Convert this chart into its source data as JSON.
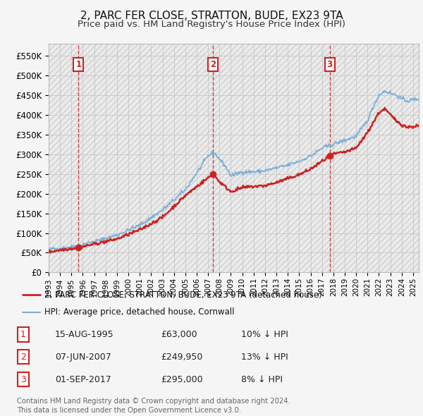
{
  "title": "2, PARC FER CLOSE, STRATTON, BUDE, EX23 9TA",
  "subtitle": "Price paid vs. HM Land Registry's House Price Index (HPI)",
  "ylim": [
    0,
    580000
  ],
  "yticks": [
    0,
    50000,
    100000,
    150000,
    200000,
    250000,
    300000,
    350000,
    400000,
    450000,
    500000,
    550000
  ],
  "ytick_labels": [
    "£0",
    "£50K",
    "£100K",
    "£150K",
    "£200K",
    "£250K",
    "£300K",
    "£350K",
    "£400K",
    "£450K",
    "£500K",
    "£550K"
  ],
  "xlim_start": 1993.0,
  "xlim_end": 2025.5,
  "hpi_color": "#7ab0d8",
  "price_color": "#cc2222",
  "dot_color": "#cc2222",
  "vline_color": "#cc2222",
  "bg_color": "#f5f5f5",
  "plot_bg_color": "#ffffff",
  "sales": [
    {
      "num": 1,
      "year": 1995.62,
      "price": 63000,
      "label": "1"
    },
    {
      "num": 2,
      "year": 2007.44,
      "price": 249950,
      "label": "2"
    },
    {
      "num": 3,
      "year": 2017.67,
      "price": 295000,
      "label": "3"
    }
  ],
  "legend_entries": [
    {
      "label": "2, PARC FER CLOSE, STRATTON, BUDE, EX23 9TA (detached house)",
      "color": "#cc2222",
      "lw": 2.0
    },
    {
      "label": "HPI: Average price, detached house, Cornwall",
      "color": "#7ab0d8",
      "lw": 1.5
    }
  ],
  "table_rows": [
    {
      "num": "1",
      "date": "15-AUG-1995",
      "price": "£63,000",
      "hpi": "10% ↓ HPI"
    },
    {
      "num": "2",
      "date": "07-JUN-2007",
      "price": "£249,950",
      "hpi": "13% ↓ HPI"
    },
    {
      "num": "3",
      "date": "01-SEP-2017",
      "price": "£295,000",
      "hpi": "8% ↓ HPI"
    }
  ],
  "footer": "Contains HM Land Registry data © Crown copyright and database right 2024.\nThis data is licensed under the Open Government Licence v3.0.",
  "title_fontsize": 11,
  "subtitle_fontsize": 9.5
}
